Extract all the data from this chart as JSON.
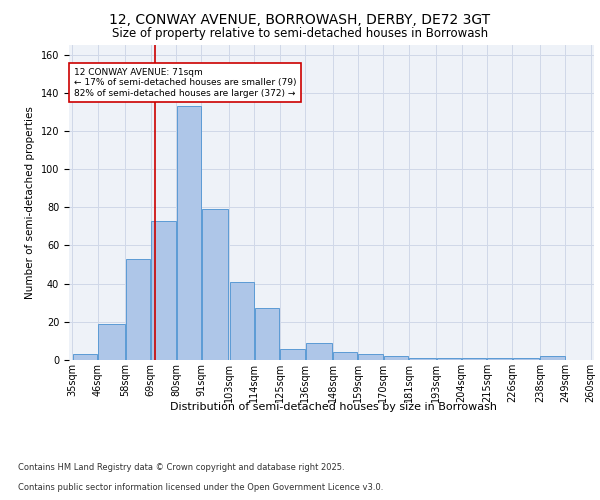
{
  "title_line1": "12, CONWAY AVENUE, BORROWASH, DERBY, DE72 3GT",
  "title_line2": "Size of property relative to semi-detached houses in Borrowash",
  "xlabel": "Distribution of semi-detached houses by size in Borrowash",
  "ylabel": "Number of semi-detached properties",
  "footnote1": "Contains HM Land Registry data © Crown copyright and database right 2025.",
  "footnote2": "Contains public sector information licensed under the Open Government Licence v3.0.",
  "property_size": 71,
  "property_label": "12 CONWAY AVENUE: 71sqm",
  "pct_smaller": 17,
  "pct_larger": 82,
  "n_smaller": 79,
  "n_larger": 372,
  "bar_color": "#aec6e8",
  "bar_edge_color": "#5b9bd5",
  "highlight_line_color": "#cc0000",
  "annotation_box_color": "#cc0000",
  "grid_color": "#d0d8e8",
  "bg_color": "#eef2f8",
  "bins": [
    35,
    46,
    58,
    69,
    80,
    91,
    103,
    114,
    125,
    136,
    148,
    159,
    170,
    181,
    193,
    204,
    215,
    226,
    238,
    249,
    260
  ],
  "bin_labels": [
    "35sqm",
    "46sqm",
    "58sqm",
    "69sqm",
    "80sqm",
    "91sqm",
    "103sqm",
    "114sqm",
    "125sqm",
    "136sqm",
    "148sqm",
    "159sqm",
    "170sqm",
    "181sqm",
    "193sqm",
    "204sqm",
    "215sqm",
    "226sqm",
    "238sqm",
    "249sqm",
    "260sqm"
  ],
  "counts": [
    3,
    19,
    53,
    73,
    133,
    79,
    41,
    27,
    6,
    9,
    4,
    3,
    2,
    1,
    1,
    1,
    1,
    1,
    2,
    0
  ],
  "ylim": [
    0,
    165
  ],
  "title_fontsize": 10,
  "subtitle_fontsize": 8.5,
  "ylabel_fontsize": 7.5,
  "tick_fontsize": 7,
  "annotation_fontsize": 6.5,
  "xlabel_fontsize": 8,
  "footnote_fontsize": 6
}
